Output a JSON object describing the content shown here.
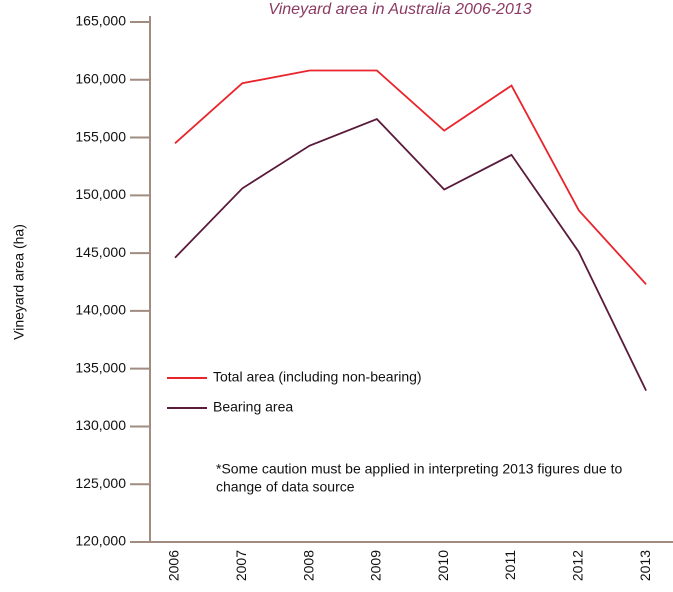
{
  "chart_data": {
    "type": "line",
    "title": "Vineyard area in Australia 2006-2013",
    "y_label": "Vineyard area (ha)",
    "categories": [
      "2006",
      "2007",
      "2008",
      "2009",
      "2010",
      "2011",
      "2012",
      "2013"
    ],
    "series": [
      {
        "name": "Total area (including non-bearing)",
        "color": "#e8242c",
        "values": [
          154500,
          159700,
          160800,
          160800,
          155600,
          159500,
          148700,
          142300
        ]
      },
      {
        "name": "Bearing area",
        "color": "#5a1a3a",
        "values": [
          144600,
          150600,
          154300,
          156600,
          150500,
          153500,
          145100,
          133100
        ]
      }
    ],
    "ylim": [
      120000,
      165000
    ],
    "yticks": [
      {
        "value": 120000,
        "label": "120,000"
      },
      {
        "value": 125000,
        "label": "125,000"
      },
      {
        "value": 130000,
        "label": "130,000"
      },
      {
        "value": 135000,
        "label": "135,000"
      },
      {
        "value": 140000,
        "label": "140,000"
      },
      {
        "value": 145000,
        "label": "145,000"
      },
      {
        "value": 150000,
        "label": "150,000"
      },
      {
        "value": 155000,
        "label": "155,000"
      },
      {
        "value": 160000,
        "label": "160,000"
      },
      {
        "value": 165000,
        "label": "165,000"
      }
    ],
    "note": [
      "*Some caution must be applied in interpreting 2013 figures due to",
      "change of data source"
    ]
  }
}
